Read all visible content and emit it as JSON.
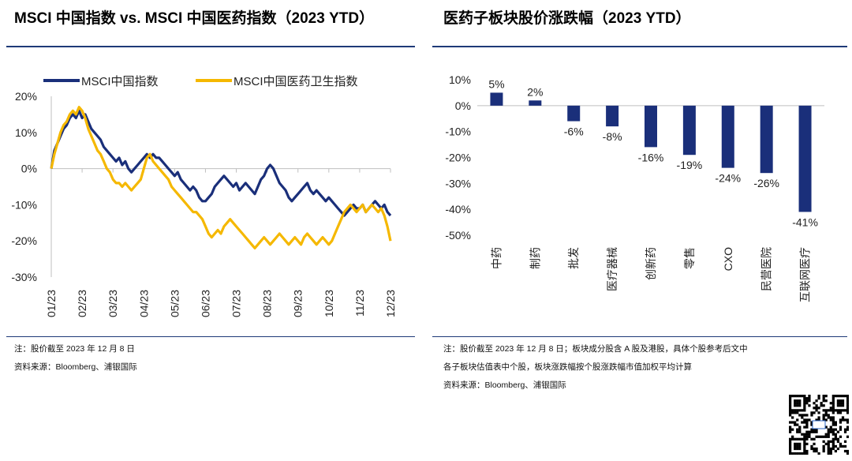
{
  "left_panel": {
    "title": "MSCI 中国指数 vs. MSCI 中国医药指数（2023 YTD）",
    "note": "注：股价截至 2023 年 12 月 8 日",
    "source": "资料来源：Bloomberg、浦银国际"
  },
  "right_panel": {
    "title": "医药子板块股价涨跌幅（2023 YTD）",
    "note_line1": "注：股价截至 2023 年 12 月 8 日；板块成分股含 A 股及港股，具体个股参考后文中",
    "note_line2": "各子板块估值表中个股，板块涨跌幅按个股涨跌幅市值加权平均计算",
    "source": "资料来源：Bloomberg、浦银国际"
  },
  "colors": {
    "navy": "#1a2f7a",
    "gold": "#f5b800",
    "rule": "#1f3a78"
  },
  "qr_icon": "qr-code",
  "chart_data": [
    {
      "type": "line",
      "title": "MSCI 中国指数 vs. MSCI 中国医药指数（2023 YTD）",
      "categories": [
        "01/23",
        "02/23",
        "03/23",
        "04/23",
        "05/23",
        "06/23",
        "07/23",
        "08/23",
        "09/23",
        "10/23",
        "11/23",
        "12/23"
      ],
      "ylim": [
        -30,
        20
      ],
      "yticks": [
        20,
        10,
        0,
        -10,
        -20,
        -30
      ],
      "ytick_labels": [
        "20%",
        "10%",
        "0%",
        "-10%",
        "-20%",
        "-30%"
      ],
      "legend_position": "top",
      "series": [
        {
          "name": "MSCI中国指数",
          "color": "#1a2f7a",
          "points": [
            [
              0,
              0
            ],
            [
              0.1,
              5
            ],
            [
              0.2,
              7
            ],
            [
              0.3,
              9
            ],
            [
              0.4,
              11
            ],
            [
              0.5,
              12
            ],
            [
              0.6,
              14
            ],
            [
              0.7,
              15
            ],
            [
              0.8,
              14
            ],
            [
              0.9,
              16
            ],
            [
              1.0,
              14
            ],
            [
              1.1,
              15
            ],
            [
              1.2,
              13
            ],
            [
              1.3,
              11
            ],
            [
              1.4,
              10
            ],
            [
              1.5,
              9
            ],
            [
              1.6,
              8
            ],
            [
              1.7,
              6
            ],
            [
              1.8,
              5
            ],
            [
              1.9,
              4
            ],
            [
              2.0,
              3
            ],
            [
              2.1,
              2
            ],
            [
              2.2,
              3
            ],
            [
              2.3,
              1
            ],
            [
              2.4,
              2
            ],
            [
              2.5,
              0
            ],
            [
              2.6,
              -1
            ],
            [
              2.7,
              0
            ],
            [
              2.8,
              1
            ],
            [
              2.9,
              2
            ],
            [
              3.0,
              3
            ],
            [
              3.1,
              4
            ],
            [
              3.2,
              3
            ],
            [
              3.3,
              4
            ],
            [
              3.4,
              3
            ],
            [
              3.5,
              3
            ],
            [
              3.6,
              2
            ],
            [
              3.7,
              1
            ],
            [
              3.8,
              0
            ],
            [
              3.9,
              -1
            ],
            [
              4.0,
              -2
            ],
            [
              4.1,
              -1
            ],
            [
              4.2,
              -3
            ],
            [
              4.3,
              -4
            ],
            [
              4.4,
              -5
            ],
            [
              4.5,
              -6
            ],
            [
              4.6,
              -5
            ],
            [
              4.7,
              -6
            ],
            [
              4.8,
              -8
            ],
            [
              4.9,
              -9
            ],
            [
              5.0,
              -9
            ],
            [
              5.1,
              -8
            ],
            [
              5.2,
              -7
            ],
            [
              5.3,
              -5
            ],
            [
              5.4,
              -4
            ],
            [
              5.5,
              -3
            ],
            [
              5.6,
              -2
            ],
            [
              5.7,
              -3
            ],
            [
              5.8,
              -4
            ],
            [
              5.9,
              -5
            ],
            [
              6.0,
              -4
            ],
            [
              6.1,
              -6
            ],
            [
              6.2,
              -5
            ],
            [
              6.3,
              -4
            ],
            [
              6.4,
              -5
            ],
            [
              6.5,
              -6
            ],
            [
              6.6,
              -7
            ],
            [
              6.7,
              -5
            ],
            [
              6.8,
              -3
            ],
            [
              6.9,
              -2
            ],
            [
              7.0,
              0
            ],
            [
              7.1,
              1
            ],
            [
              7.2,
              0
            ],
            [
              7.3,
              -2
            ],
            [
              7.4,
              -4
            ],
            [
              7.5,
              -5
            ],
            [
              7.6,
              -6
            ],
            [
              7.7,
              -8
            ],
            [
              7.8,
              -9
            ],
            [
              7.9,
              -8
            ],
            [
              8.0,
              -7
            ],
            [
              8.1,
              -6
            ],
            [
              8.2,
              -5
            ],
            [
              8.3,
              -4
            ],
            [
              8.4,
              -6
            ],
            [
              8.5,
              -7
            ],
            [
              8.6,
              -6
            ],
            [
              8.7,
              -7
            ],
            [
              8.8,
              -8
            ],
            [
              8.9,
              -9
            ],
            [
              9.0,
              -8
            ],
            [
              9.1,
              -9
            ],
            [
              9.2,
              -10
            ],
            [
              9.3,
              -11
            ],
            [
              9.4,
              -12
            ],
            [
              9.5,
              -13
            ],
            [
              9.6,
              -12
            ],
            [
              9.7,
              -11
            ],
            [
              9.8,
              -10
            ],
            [
              9.9,
              -11
            ],
            [
              10.0,
              -11
            ],
            [
              10.1,
              -10
            ],
            [
              10.2,
              -12
            ],
            [
              10.3,
              -11
            ],
            [
              10.4,
              -10
            ],
            [
              10.5,
              -9
            ],
            [
              10.6,
              -10
            ],
            [
              10.7,
              -11
            ],
            [
              10.8,
              -10
            ],
            [
              10.9,
              -12
            ],
            [
              11.0,
              -13
            ]
          ]
        },
        {
          "name": "MSCI中国医药卫生指数",
          "color": "#f5b800",
          "points": [
            [
              0,
              0
            ],
            [
              0.1,
              4
            ],
            [
              0.2,
              7
            ],
            [
              0.3,
              10
            ],
            [
              0.4,
              12
            ],
            [
              0.5,
              13
            ],
            [
              0.6,
              15
            ],
            [
              0.7,
              16
            ],
            [
              0.8,
              15
            ],
            [
              0.9,
              17
            ],
            [
              1.0,
              16
            ],
            [
              1.1,
              14
            ],
            [
              1.2,
              11
            ],
            [
              1.3,
              9
            ],
            [
              1.4,
              7
            ],
            [
              1.5,
              5
            ],
            [
              1.6,
              4
            ],
            [
              1.7,
              2
            ],
            [
              1.8,
              0
            ],
            [
              1.9,
              -1
            ],
            [
              2.0,
              -3
            ],
            [
              2.1,
              -4
            ],
            [
              2.2,
              -4
            ],
            [
              2.3,
              -5
            ],
            [
              2.4,
              -4
            ],
            [
              2.5,
              -5
            ],
            [
              2.6,
              -6
            ],
            [
              2.7,
              -5
            ],
            [
              2.8,
              -4
            ],
            [
              2.9,
              -3
            ],
            [
              3.0,
              0
            ],
            [
              3.1,
              3
            ],
            [
              3.2,
              4
            ],
            [
              3.3,
              2
            ],
            [
              3.4,
              1
            ],
            [
              3.5,
              0
            ],
            [
              3.6,
              -1
            ],
            [
              3.7,
              -2
            ],
            [
              3.8,
              -3
            ],
            [
              3.9,
              -5
            ],
            [
              4.0,
              -6
            ],
            [
              4.1,
              -7
            ],
            [
              4.2,
              -8
            ],
            [
              4.3,
              -9
            ],
            [
              4.4,
              -10
            ],
            [
              4.5,
              -11
            ],
            [
              4.6,
              -12
            ],
            [
              4.7,
              -12
            ],
            [
              4.8,
              -13
            ],
            [
              4.9,
              -14
            ],
            [
              5.0,
              -16
            ],
            [
              5.1,
              -18
            ],
            [
              5.2,
              -19
            ],
            [
              5.3,
              -18
            ],
            [
              5.4,
              -17
            ],
            [
              5.5,
              -18
            ],
            [
              5.6,
              -16
            ],
            [
              5.7,
              -15
            ],
            [
              5.8,
              -14
            ],
            [
              5.9,
              -15
            ],
            [
              6.0,
              -16
            ],
            [
              6.1,
              -17
            ],
            [
              6.2,
              -18
            ],
            [
              6.3,
              -19
            ],
            [
              6.4,
              -20
            ],
            [
              6.5,
              -21
            ],
            [
              6.6,
              -22
            ],
            [
              6.7,
              -21
            ],
            [
              6.8,
              -20
            ],
            [
              6.9,
              -19
            ],
            [
              7.0,
              -20
            ],
            [
              7.1,
              -21
            ],
            [
              7.2,
              -20
            ],
            [
              7.3,
              -19
            ],
            [
              7.4,
              -18
            ],
            [
              7.5,
              -19
            ],
            [
              7.6,
              -20
            ],
            [
              7.7,
              -21
            ],
            [
              7.8,
              -20
            ],
            [
              7.9,
              -19
            ],
            [
              8.0,
              -20
            ],
            [
              8.1,
              -21
            ],
            [
              8.2,
              -19
            ],
            [
              8.3,
              -18
            ],
            [
              8.4,
              -19
            ],
            [
              8.5,
              -20
            ],
            [
              8.6,
              -21
            ],
            [
              8.7,
              -20
            ],
            [
              8.8,
              -19
            ],
            [
              8.9,
              -20
            ],
            [
              9.0,
              -21
            ],
            [
              9.1,
              -20
            ],
            [
              9.2,
              -18
            ],
            [
              9.3,
              -16
            ],
            [
              9.4,
              -14
            ],
            [
              9.5,
              -12
            ],
            [
              9.6,
              -11
            ],
            [
              9.7,
              -10
            ],
            [
              9.8,
              -11
            ],
            [
              9.9,
              -12
            ],
            [
              10.0,
              -11
            ],
            [
              10.1,
              -10
            ],
            [
              10.2,
              -12
            ],
            [
              10.3,
              -11
            ],
            [
              10.4,
              -10
            ],
            [
              10.5,
              -11
            ],
            [
              10.6,
              -12
            ],
            [
              10.7,
              -11
            ],
            [
              10.8,
              -13
            ],
            [
              10.9,
              -16
            ],
            [
              11.0,
              -20
            ]
          ]
        }
      ]
    },
    {
      "type": "bar",
      "title": "医药子板块股价涨跌幅（2023 YTD）",
      "categories": [
        "中药",
        "制药",
        "批发",
        "医疗器械",
        "创新药",
        "零售",
        "CXO",
        "民营医院",
        "互联网医疗"
      ],
      "values": [
        5,
        2,
        -6,
        -8,
        -16,
        -19,
        -24,
        -26,
        -41
      ],
      "data_labels": [
        "5%",
        "2%",
        "-6%",
        "-8%",
        "-16%",
        "-19%",
        "-24%",
        "-26%",
        "-41%"
      ],
      "ylim": [
        -50,
        10
      ],
      "yticks": [
        10,
        0,
        -10,
        -20,
        -30,
        -40,
        -50
      ],
      "ytick_labels": [
        "10%",
        "0%",
        "-10%",
        "-20%",
        "-30%",
        "-40%",
        "-50%"
      ],
      "color": "#1a2f7a"
    }
  ]
}
